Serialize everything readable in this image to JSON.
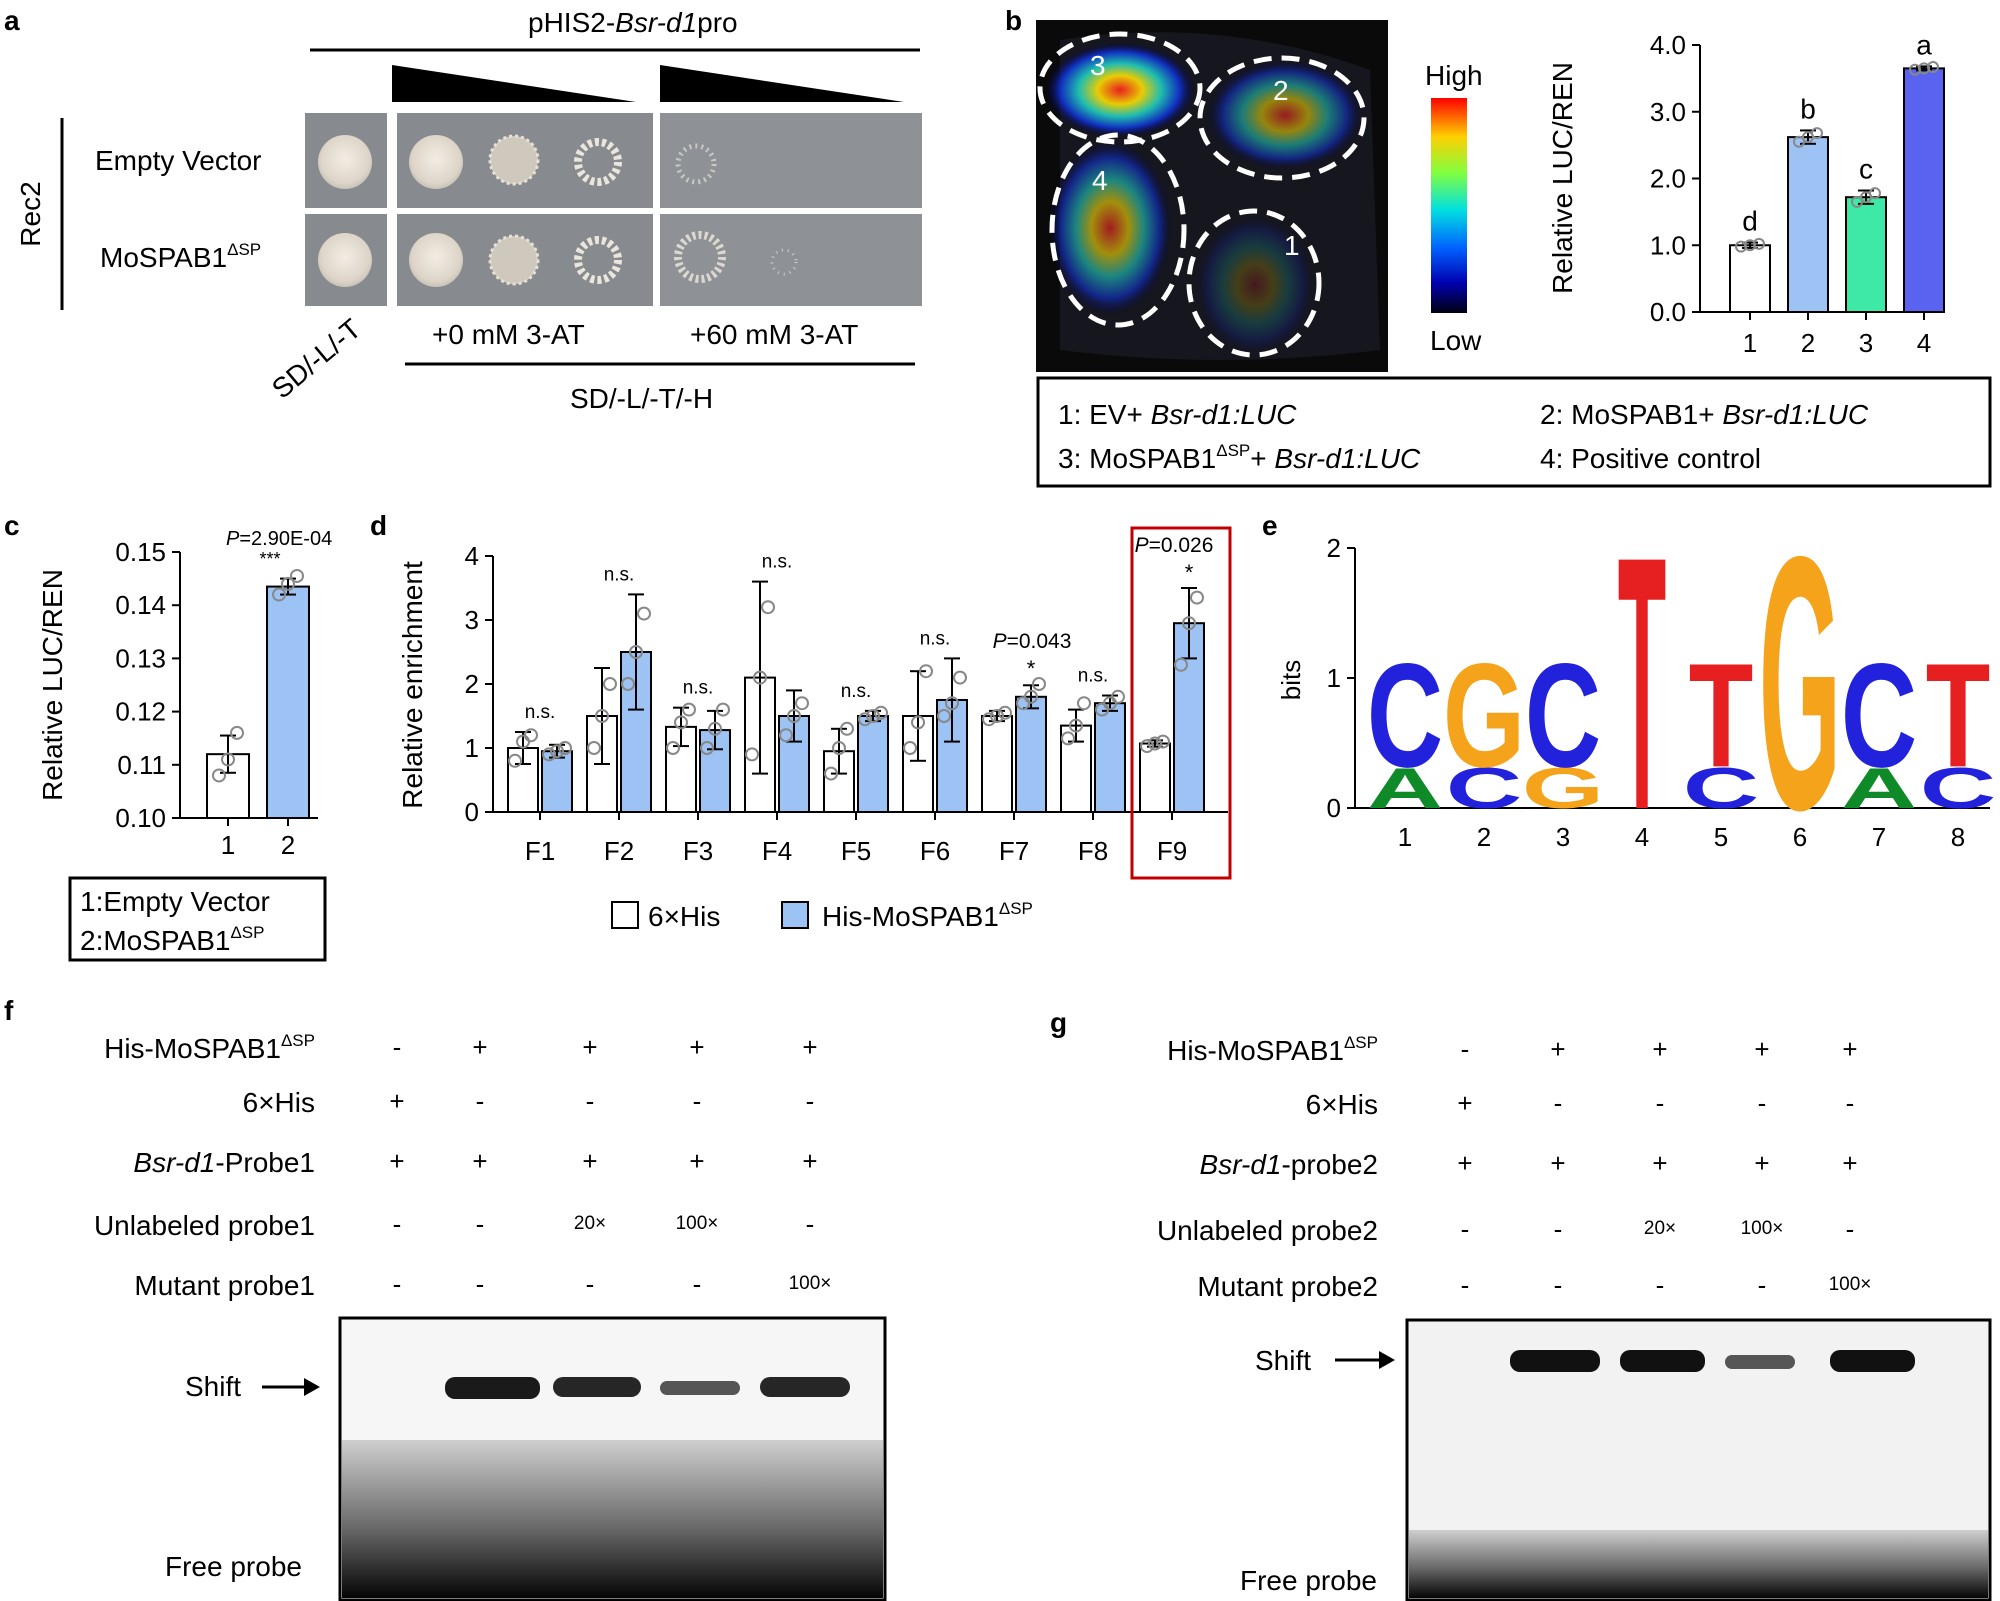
{
  "panels": {
    "a": {
      "label": "a",
      "construct_prefix": "pHIS2-",
      "construct_italic": "Bsr-d1",
      "construct_suffix": "pro",
      "side_label": "Rec2",
      "rows": [
        {
          "name": "Empty Vector",
          "sup": ""
        },
        {
          "name": "MoSPAB1",
          "sup": "ΔSP"
        }
      ],
      "col_labels": [
        "SD/-L/-T",
        "+0 mM 3-AT",
        "+60 mM 3-AT"
      ],
      "bottom_label": "SD/-L/-T/-H"
    },
    "b": {
      "label": "b",
      "leaf_zones": [
        "3",
        "2",
        "4",
        "1"
      ],
      "scale_high": "High",
      "scale_low": "Low",
      "legend": [
        {
          "prefix": "1: EV+ ",
          "sup": "",
          "italic": "Bsr-d1:LUC"
        },
        {
          "prefix": "2: MoSPAB1+ ",
          "sup": "",
          "italic": "Bsr-d1:LUC"
        },
        {
          "prefix": "3: MoSPAB1",
          "sup": "ΔSP",
          "mid": "+ ",
          "italic": "Bsr-d1:LUC"
        },
        {
          "prefix": "4: Positive control",
          "sup": "",
          "italic": ""
        }
      ]
    },
    "c": {
      "label": "c",
      "pvalue_prefix": "P",
      "pvalue": "=2.90E-04",
      "stars": "***",
      "legend": [
        {
          "text": "1:Empty Vector",
          "sup": ""
        },
        {
          "text": "2:MoSPAB1",
          "sup": "ΔSP"
        }
      ]
    },
    "d": {
      "label": "d",
      "legend": [
        {
          "text": "6×His",
          "sup": ""
        },
        {
          "text": "His-MoSPAB1",
          "sup": "ΔSP"
        }
      ],
      "highlight": "F9"
    },
    "e": {
      "label": "e"
    },
    "f": {
      "label": "f",
      "rows": [
        {
          "label": "His-MoSPAB1",
          "sup": "ΔSP",
          "italic": "",
          "values": [
            "-",
            "+",
            "+",
            "+",
            "+"
          ]
        },
        {
          "label": "6×His",
          "sup": "",
          "italic": "",
          "values": [
            "+",
            "-",
            "-",
            "-",
            "-"
          ]
        },
        {
          "label": "-Probe1",
          "sup": "",
          "italic": "Bsr-d1",
          "values": [
            "+",
            "+",
            "+",
            "+",
            "+"
          ]
        },
        {
          "label": "Unlabeled probe1",
          "sup": "",
          "italic": "",
          "values": [
            "-",
            "-",
            "20×",
            "100×",
            "-"
          ]
        },
        {
          "label": "Mutant probe1",
          "sup": "",
          "italic": "",
          "values": [
            "-",
            "-",
            "-",
            "-",
            "100×"
          ]
        }
      ],
      "shift": "Shift",
      "free": "Free probe"
    },
    "g": {
      "label": "g",
      "rows": [
        {
          "label": "His-MoSPAB1",
          "sup": "ΔSP",
          "italic": "",
          "values": [
            "-",
            "+",
            "+",
            "+",
            "+"
          ]
        },
        {
          "label": "6×His",
          "sup": "",
          "italic": "",
          "values": [
            "+",
            "-",
            "-",
            "-",
            "-"
          ]
        },
        {
          "label": "-probe2",
          "sup": "",
          "italic": "Bsr-d1",
          "values": [
            "+",
            "+",
            "+",
            "+",
            "+"
          ]
        },
        {
          "label": "Unlabeled probe2",
          "sup": "",
          "italic": "",
          "values": [
            "-",
            "-",
            "20×",
            "100×",
            "-"
          ]
        },
        {
          "label": "Mutant probe2",
          "sup": "",
          "italic": "",
          "values": [
            "-",
            "-",
            "-",
            "-",
            "100×"
          ]
        }
      ],
      "shift": "Shift",
      "free": "Free probe"
    }
  },
  "chart_data": [
    {
      "id": "b",
      "type": "bar",
      "categories": [
        "1",
        "2",
        "3",
        "4"
      ],
      "values": [
        1.0,
        2.62,
        1.72,
        3.65
      ],
      "errors": [
        0.04,
        0.1,
        0.1,
        0.03
      ],
      "letters": [
        "d",
        "b",
        "c",
        "a"
      ],
      "colors": [
        "#ffffff",
        "#9dc3f5",
        "#3ee8a6",
        "#5a63f0"
      ],
      "ylabel": "Relative LUC/REN",
      "ylim": [
        0,
        4
      ],
      "yticks": [
        "0.0",
        "1.0",
        "2.0",
        "3.0",
        "4.0"
      ],
      "points": [
        [
          0.98,
          1.0,
          1.02
        ],
        [
          2.55,
          2.62,
          2.68
        ],
        [
          1.65,
          1.72,
          1.78
        ],
        [
          3.63,
          3.65,
          3.67
        ]
      ]
    },
    {
      "id": "c",
      "type": "bar",
      "categories": [
        "1",
        "2"
      ],
      "values": [
        0.112,
        0.1435
      ],
      "errors": [
        0.0035,
        0.0015
      ],
      "colors": [
        "#ffffff",
        "#9dc3f5"
      ],
      "ylabel": "Relative LUC/REN",
      "ylim": [
        0.1,
        0.15
      ],
      "yticks": [
        "0.10",
        "0.11",
        "0.12",
        "0.13",
        "0.14",
        "0.15"
      ],
      "points": [
        [
          0.108,
          0.111,
          0.116
        ],
        [
          0.142,
          0.144,
          0.1455
        ]
      ]
    },
    {
      "id": "d",
      "type": "bar",
      "categories": [
        "F1",
        "F2",
        "F3",
        "F4",
        "F5",
        "F6",
        "F7",
        "F8",
        "F9"
      ],
      "series": [
        {
          "name": "6×His",
          "color": "#ffffff",
          "values": [
            1.0,
            1.5,
            1.33,
            2.1,
            0.95,
            1.5,
            1.5,
            1.35,
            1.07
          ],
          "errors": [
            0.25,
            0.75,
            0.3,
            1.5,
            0.35,
            0.7,
            0.08,
            0.25,
            0.05
          ],
          "points": [
            [
              0.8,
              1.1,
              1.2
            ],
            [
              1.0,
              1.5,
              2.0
            ],
            [
              1.0,
              1.4,
              1.6
            ],
            [
              0.9,
              2.1,
              3.2
            ],
            [
              0.6,
              1.0,
              1.3
            ],
            [
              1.0,
              1.4,
              2.2
            ],
            [
              1.45,
              1.5,
              1.55
            ],
            [
              1.15,
              1.35,
              1.7
            ],
            [
              1.03,
              1.07,
              1.1
            ]
          ]
        },
        {
          "name": "His-MoSPAB1ΔSP",
          "color": "#9dc3f5",
          "values": [
            0.95,
            2.5,
            1.28,
            1.5,
            1.5,
            1.75,
            1.8,
            1.7,
            2.95
          ],
          "errors": [
            0.1,
            0.9,
            0.3,
            0.4,
            0.08,
            0.65,
            0.18,
            0.12,
            0.55
          ],
          "points": [
            [
              0.9,
              0.95,
              1.0
            ],
            [
              2.0,
              2.5,
              3.1
            ],
            [
              1.0,
              1.3,
              1.6
            ],
            [
              1.2,
              1.5,
              1.7
            ],
            [
              1.45,
              1.5,
              1.55
            ],
            [
              1.5,
              1.7,
              2.1
            ],
            [
              1.7,
              1.8,
              2.0
            ],
            [
              1.6,
              1.7,
              1.8
            ],
            [
              2.3,
              2.95,
              3.35
            ]
          ]
        }
      ],
      "annotations": [
        "n.s.",
        "n.s.",
        "n.s.",
        "n.s.",
        "n.s.",
        "n.s.",
        "P=0.043 *",
        "n.s.",
        "P=0.026 *"
      ],
      "annotation_labels": {
        "ns": "n.s.",
        "p_f7": "=0.043",
        "p_f9": "=0.026",
        "p": "P",
        "star": "*"
      },
      "ylabel": "Relative enrichment",
      "ylim": [
        0,
        4
      ],
      "yticks": [
        "0",
        "1",
        "2",
        "3",
        "4"
      ]
    },
    {
      "id": "e",
      "type": "sequence-logo",
      "ylabel": "bits",
      "yticks": [
        "0",
        "1",
        "2"
      ],
      "positions": [
        "1",
        "2",
        "3",
        "4",
        "5",
        "6",
        "7",
        "8"
      ],
      "top_letters": [
        "C",
        "G",
        "C",
        "T",
        "T",
        "G",
        "C",
        "T"
      ],
      "bottom_letters": [
        "A",
        "C",
        "G",
        "",
        "C",
        "",
        "A",
        "C"
      ]
    }
  ]
}
